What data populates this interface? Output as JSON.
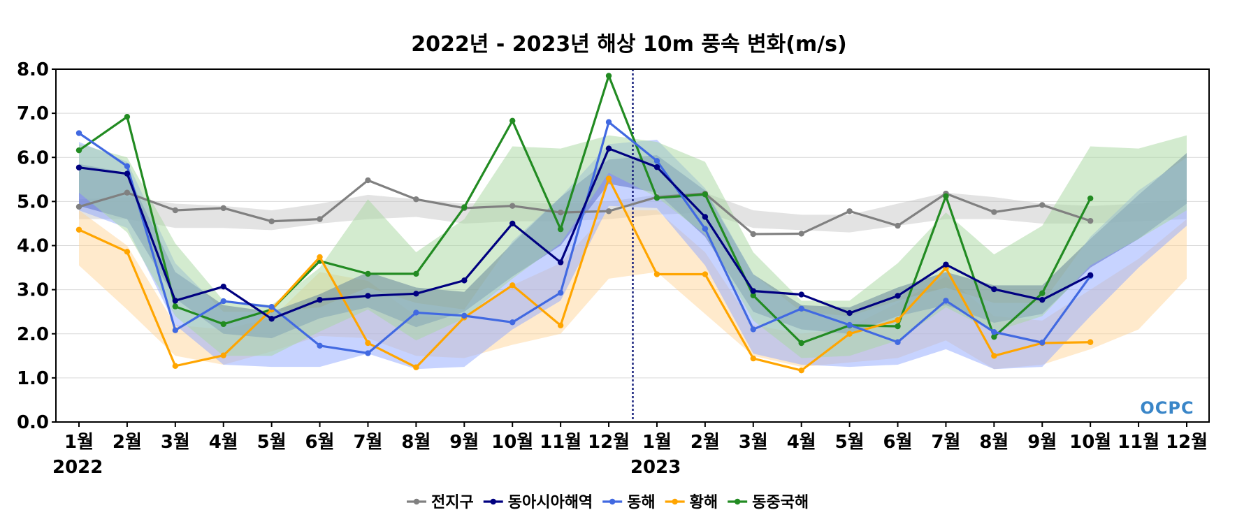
{
  "chart_data": {
    "type": "line",
    "title": "2022년 - 2023년 해상 10m 풍속 변화(m/s)",
    "xlabel": "",
    "ylabel": "",
    "ylim": [
      0,
      8
    ],
    "yticks": [
      "0.0",
      "1.0",
      "2.0",
      "3.0",
      "4.0",
      "5.0",
      "6.0",
      "7.0",
      "8.0"
    ],
    "categories": [
      "1월",
      "2월",
      "3월",
      "4월",
      "5월",
      "6월",
      "7월",
      "8월",
      "9월",
      "10월",
      "11월",
      "12월",
      "1월",
      "2월",
      "3월",
      "4월",
      "5월",
      "6월",
      "7월",
      "8월",
      "9월",
      "10월",
      "11월",
      "12월"
    ],
    "year_labels": [
      {
        "index": 0,
        "label": "2022"
      },
      {
        "index": 12,
        "label": "2023"
      }
    ],
    "year_divider_after_index": 11,
    "grid": true,
    "legend_position": "bottom",
    "logo_text": "OCPC",
    "series": [
      {
        "name": "전지구",
        "color": "#808080",
        "band_color": "#c8c8c8",
        "values": [
          4.88,
          5.2,
          4.8,
          4.85,
          4.55,
          4.6,
          5.48,
          5.05,
          4.85,
          4.9,
          4.75,
          4.78,
          5.1,
          5.18,
          4.26,
          4.27,
          4.78,
          4.45,
          5.18,
          4.76,
          4.92,
          4.56,
          null,
          null
        ],
        "band_low": [
          4.6,
          4.6,
          4.4,
          4.4,
          4.35,
          4.5,
          4.6,
          4.65,
          4.5,
          4.55,
          4.55,
          4.6,
          4.7,
          4.75,
          4.4,
          4.35,
          4.3,
          4.45,
          4.6,
          4.6,
          4.5,
          4.5,
          4.55,
          4.6
        ],
        "band_high": [
          5.05,
          5.1,
          4.95,
          4.9,
          4.8,
          4.95,
          5.15,
          5.05,
          4.95,
          5.0,
          4.95,
          5.0,
          5.15,
          5.2,
          4.8,
          4.7,
          4.7,
          4.95,
          5.2,
          5.1,
          4.95,
          4.9,
          4.95,
          5.05
        ]
      },
      {
        "name": "동아시아해역",
        "color": "#000080",
        "band_color": "#2b3a96",
        "values": [
          5.77,
          5.63,
          2.75,
          3.07,
          2.34,
          2.77,
          2.86,
          2.91,
          3.21,
          4.5,
          3.62,
          6.2,
          5.78,
          4.65,
          2.97,
          2.89,
          2.47,
          2.86,
          3.57,
          3.01,
          2.77,
          3.33,
          null,
          null
        ],
        "band_low": [
          4.9,
          4.6,
          2.8,
          2.0,
          1.9,
          2.35,
          2.6,
          2.15,
          2.5,
          3.3,
          4.0,
          5.4,
          5.2,
          4.2,
          2.5,
          2.1,
          2.0,
          2.4,
          2.65,
          2.25,
          2.45,
          3.5,
          4.15,
          4.95
        ],
        "band_high": [
          5.85,
          5.65,
          3.4,
          2.65,
          2.5,
          2.9,
          3.4,
          3.05,
          2.95,
          4.05,
          5.1,
          5.95,
          6.05,
          5.25,
          3.35,
          2.65,
          2.6,
          3.05,
          3.4,
          3.1,
          3.1,
          4.15,
          5.15,
          6.1
        ]
      },
      {
        "name": "동해",
        "color": "#4169e1",
        "band_color": "#8fa7ff",
        "values": [
          6.55,
          5.8,
          2.08,
          2.74,
          2.61,
          1.73,
          1.56,
          2.48,
          2.41,
          2.26,
          2.93,
          6.8,
          5.92,
          4.38,
          2.1,
          2.57,
          2.2,
          1.81,
          2.75,
          2.04,
          1.8,
          3.31,
          null,
          null
        ],
        "band_low": [
          4.8,
          4.4,
          2.2,
          1.3,
          1.25,
          1.25,
          1.55,
          1.2,
          1.25,
          2.1,
          2.75,
          4.9,
          4.85,
          3.55,
          1.55,
          1.3,
          1.25,
          1.3,
          1.65,
          1.2,
          1.25,
          2.4,
          3.5,
          4.45
        ],
        "band_high": [
          6.35,
          5.9,
          3.6,
          2.5,
          2.5,
          2.6,
          3.05,
          2.7,
          2.55,
          4.1,
          5.1,
          6.3,
          6.4,
          5.3,
          3.35,
          2.5,
          2.4,
          2.75,
          3.05,
          2.7,
          2.7,
          4.2,
          5.25,
          6.0
        ]
      },
      {
        "name": "황해",
        "color": "#ffa500",
        "band_color": "#ffd59a",
        "values": [
          4.36,
          3.86,
          1.27,
          1.51,
          2.55,
          3.74,
          1.79,
          1.24,
          2.37,
          3.1,
          2.19,
          5.52,
          3.35,
          3.35,
          1.44,
          1.17,
          2.0,
          2.31,
          3.49,
          1.5,
          1.79,
          1.81,
          null,
          null
        ],
        "band_low": [
          3.55,
          2.55,
          1.5,
          1.3,
          1.6,
          1.95,
          1.9,
          1.5,
          1.45,
          1.75,
          2.0,
          3.25,
          3.4,
          2.45,
          1.5,
          1.25,
          1.35,
          1.45,
          1.85,
          1.2,
          1.3,
          1.65,
          2.1,
          3.25
        ],
        "band_high": [
          4.8,
          4.0,
          2.2,
          2.1,
          2.35,
          3.4,
          3.2,
          2.4,
          2.35,
          3.1,
          3.6,
          4.8,
          4.8,
          3.85,
          2.2,
          2.0,
          2.15,
          2.7,
          3.3,
          2.4,
          2.3,
          3.0,
          3.7,
          4.6
        ]
      },
      {
        "name": "동중국해",
        "color": "#228b22",
        "band_color": "#a8d8a0",
        "values": [
          6.16,
          6.92,
          2.62,
          2.22,
          2.55,
          3.65,
          3.36,
          3.36,
          4.87,
          6.83,
          4.37,
          7.85,
          5.08,
          5.16,
          2.87,
          1.79,
          2.19,
          2.17,
          5.12,
          1.93,
          2.92,
          5.07,
          null,
          null
        ],
        "band_low": [
          5.2,
          4.3,
          2.4,
          1.5,
          1.5,
          2.05,
          2.55,
          1.85,
          2.35,
          3.25,
          4.05,
          5.65,
          5.1,
          4.25,
          2.3,
          1.45,
          1.5,
          1.85,
          2.6,
          2.05,
          2.4,
          3.55,
          4.15,
          4.8
        ],
        "band_high": [
          6.3,
          6.0,
          4.05,
          2.75,
          2.65,
          3.5,
          5.05,
          3.85,
          4.6,
          6.25,
          6.2,
          6.5,
          6.35,
          5.9,
          3.85,
          2.75,
          2.75,
          3.6,
          4.75,
          3.8,
          4.45,
          6.25,
          6.2,
          6.5
        ]
      }
    ]
  }
}
